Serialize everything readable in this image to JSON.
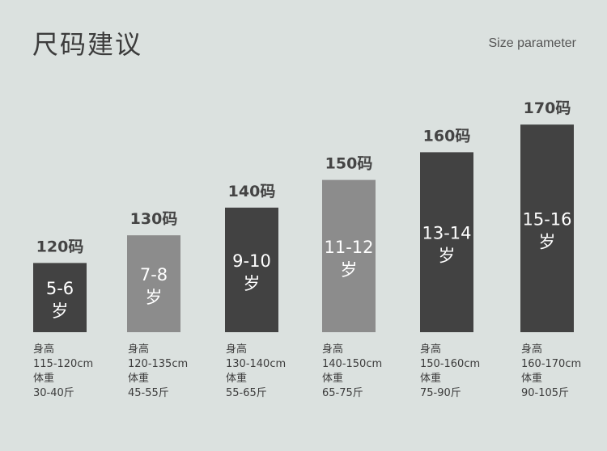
{
  "title": "尺码建议",
  "subtitle": "Size parameter",
  "colors": {
    "dark": "#424242",
    "light": "#8c8c8c",
    "background": "#dbe1df"
  },
  "chart_data": {
    "type": "bar",
    "categories": [
      "120码",
      "130码",
      "140码",
      "150码",
      "160码",
      "170码"
    ],
    "values": [
      120,
      130,
      140,
      150,
      160,
      170
    ],
    "ylim": [
      95,
      175
    ],
    "bar_colors": [
      "dark",
      "light",
      "dark",
      "light",
      "dark",
      "dark"
    ],
    "ages": [
      {
        "range": "5-6",
        "unit": "岁"
      },
      {
        "range": "7-8",
        "unit": "岁"
      },
      {
        "range": "9-10",
        "unit": "岁"
      },
      {
        "range": "11-12",
        "unit": "岁"
      },
      {
        "range": "13-14",
        "unit": "岁"
      },
      {
        "range": "15-16",
        "unit": "岁"
      }
    ]
  },
  "details": [
    {
      "height_label": "身高",
      "height": "115-120cm",
      "weight_label": "体重",
      "weight": "30-40斤"
    },
    {
      "height_label": "身高",
      "height": "120-135cm",
      "weight_label": "体重",
      "weight": "45-55斤"
    },
    {
      "height_label": "身高",
      "height": "130-140cm",
      "weight_label": "体重",
      "weight": "55-65斤"
    },
    {
      "height_label": "身高",
      "height": "140-150cm",
      "weight_label": "体重",
      "weight": "65-75斤"
    },
    {
      "height_label": "身高",
      "height": "150-160cm",
      "weight_label": "体重",
      "weight": "75-90斤"
    },
    {
      "height_label": "身高",
      "height": "160-170cm",
      "weight_label": "体重",
      "weight": "90-105斤"
    }
  ]
}
